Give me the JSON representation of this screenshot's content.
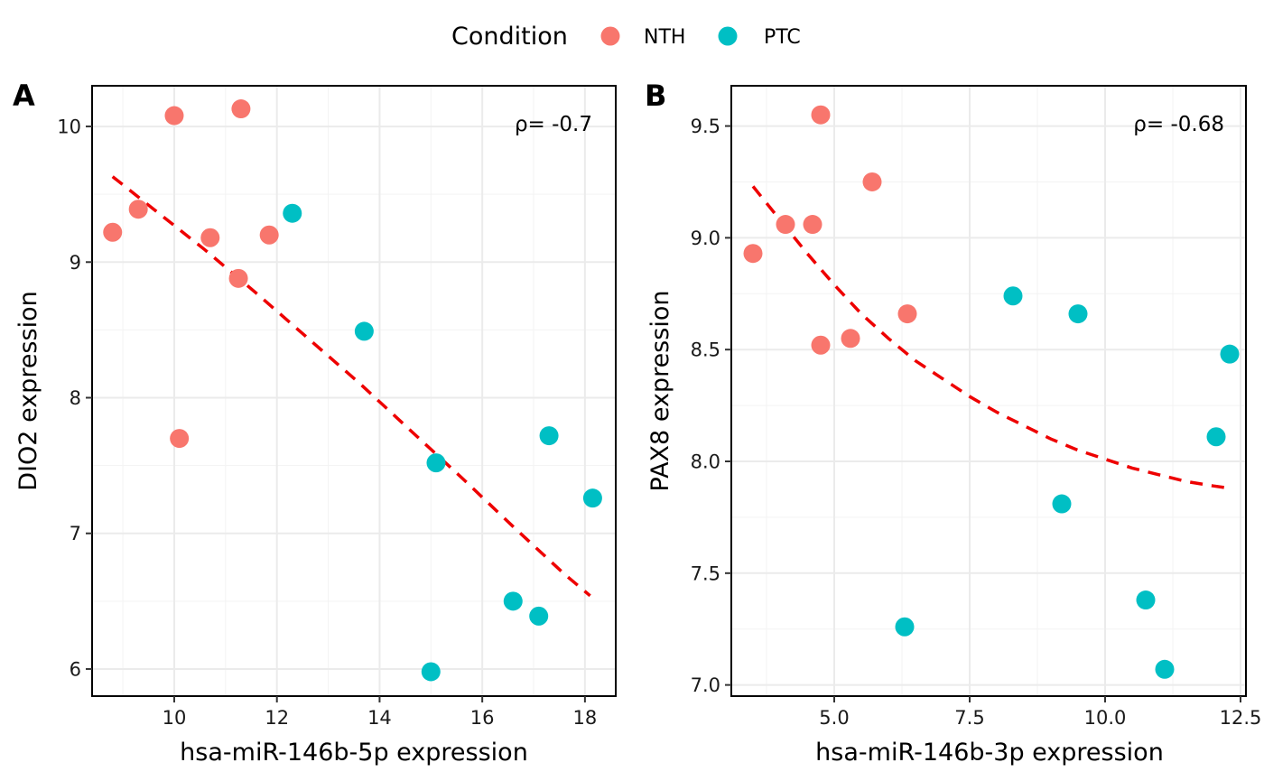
{
  "legend": {
    "title": "Condition",
    "items": [
      {
        "label": "NTH",
        "color": "#F8766D"
      },
      {
        "label": "PTC",
        "color": "#00BFC4"
      }
    ]
  },
  "chart_data": [
    {
      "type": "scatter",
      "panel_tag": "A",
      "xlabel": "hsa-miR-146b-5p expression",
      "ylabel": "DIO2 expression",
      "annotation": "ρ= -0.7",
      "annotation_position": "top-right",
      "xlim": [
        8.4,
        18.6
      ],
      "ylim": [
        5.8,
        10.3
      ],
      "x_ticks": [
        10,
        12,
        14,
        16,
        18
      ],
      "x_tick_labels": [
        "10",
        "12",
        "14",
        "16",
        "18"
      ],
      "y_ticks": [
        6,
        7,
        8,
        9,
        10
      ],
      "y_tick_labels": [
        "6",
        "7",
        "8",
        "9",
        "10"
      ],
      "grid": true,
      "series": [
        {
          "name": "NTH",
          "color": "#F8766D",
          "points": [
            [
              8.8,
              9.22
            ],
            [
              9.3,
              9.39
            ],
            [
              10.0,
              10.08
            ],
            [
              11.3,
              10.13
            ],
            [
              10.7,
              9.18
            ],
            [
              11.85,
              9.2
            ],
            [
              11.25,
              8.88
            ],
            [
              10.1,
              7.7
            ]
          ]
        },
        {
          "name": "PTC",
          "color": "#00BFC4",
          "points": [
            [
              12.3,
              9.36
            ],
            [
              13.7,
              8.49
            ],
            [
              15.1,
              7.52
            ],
            [
              17.3,
              7.72
            ],
            [
              18.15,
              7.26
            ],
            [
              16.6,
              6.5
            ],
            [
              17.1,
              6.39
            ],
            [
              15.0,
              5.98
            ]
          ]
        }
      ],
      "fit": {
        "style": "dashed",
        "color": "#EE0000",
        "points": [
          [
            8.8,
            9.63
          ],
          [
            9.6,
            9.39
          ],
          [
            10.6,
            9.09
          ],
          [
            11.6,
            8.77
          ],
          [
            12.6,
            8.44
          ],
          [
            13.6,
            8.11
          ],
          [
            14.6,
            7.76
          ],
          [
            15.6,
            7.41
          ],
          [
            16.6,
            7.05
          ],
          [
            17.6,
            6.7
          ],
          [
            18.1,
            6.54
          ]
        ]
      }
    },
    {
      "type": "scatter",
      "panel_tag": "B",
      "xlabel": "hsa-miR-146b-3p expression",
      "ylabel": "PAX8 expression",
      "annotation": "ρ= -0.68",
      "annotation_position": "top-right",
      "xlim": [
        3.1,
        12.6
      ],
      "ylim": [
        6.95,
        9.68
      ],
      "x_ticks": [
        5.0,
        7.5,
        10.0,
        12.5
      ],
      "x_tick_labels": [
        "5.0",
        "7.5",
        "10.0",
        "12.5"
      ],
      "y_ticks": [
        7.0,
        7.5,
        8.0,
        8.5,
        9.0,
        9.5
      ],
      "y_tick_labels": [
        "7.0",
        "7.5",
        "8.0",
        "8.5",
        "9.0",
        "9.5"
      ],
      "grid": true,
      "series": [
        {
          "name": "NTH",
          "color": "#F8766D",
          "points": [
            [
              3.5,
              8.93
            ],
            [
              4.1,
              9.06
            ],
            [
              4.6,
              9.06
            ],
            [
              4.75,
              9.55
            ],
            [
              5.7,
              9.25
            ],
            [
              4.75,
              8.52
            ],
            [
              5.3,
              8.55
            ],
            [
              6.35,
              8.66
            ]
          ]
        },
        {
          "name": "PTC",
          "color": "#00BFC4",
          "points": [
            [
              8.3,
              8.74
            ],
            [
              9.5,
              8.66
            ],
            [
              12.3,
              8.48
            ],
            [
              12.05,
              8.11
            ],
            [
              9.2,
              7.81
            ],
            [
              6.3,
              7.26
            ],
            [
              10.75,
              7.38
            ],
            [
              11.1,
              7.07
            ]
          ]
        }
      ],
      "fit": {
        "style": "dashed",
        "color": "#EE0000",
        "points": [
          [
            3.5,
            9.23
          ],
          [
            4.0,
            9.08
          ],
          [
            4.5,
            8.93
          ],
          [
            5.0,
            8.79
          ],
          [
            5.5,
            8.66
          ],
          [
            6.0,
            8.55
          ],
          [
            6.5,
            8.45
          ],
          [
            7.0,
            8.37
          ],
          [
            7.5,
            8.29
          ],
          [
            8.0,
            8.22
          ],
          [
            8.5,
            8.16
          ],
          [
            9.0,
            8.1
          ],
          [
            9.5,
            8.05
          ],
          [
            10.0,
            8.01
          ],
          [
            10.5,
            7.97
          ],
          [
            11.0,
            7.94
          ],
          [
            11.5,
            7.91
          ],
          [
            12.0,
            7.89
          ],
          [
            12.3,
            7.88
          ]
        ]
      }
    }
  ]
}
